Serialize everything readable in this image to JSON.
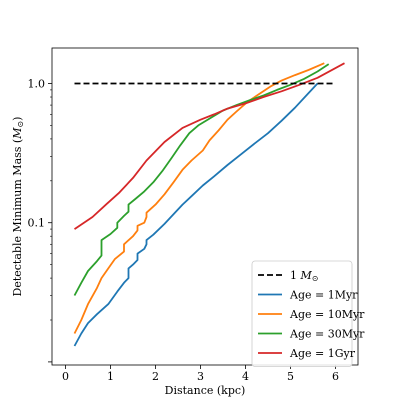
{
  "chart_data": {
    "type": "line",
    "title": "",
    "xlabel": "Distance (kpc)",
    "ylabel": "Detectable Minimum Mass (M_⊙)",
    "ylabel_main": "Detectable Minimum Mass (",
    "ylabel_unit": "M",
    "ylabel_sub": "⊙",
    "ylabel_close": ")",
    "xlim": [
      -0.3,
      6.5
    ],
    "ylim": [
      0.0095,
      1.8
    ],
    "yscale": "log",
    "grid": false,
    "legend_position": "lower-right",
    "x_ticks": [
      0,
      1,
      2,
      3,
      4,
      5,
      6
    ],
    "x_tick_labels": [
      "0",
      "1",
      "2",
      "3",
      "4",
      "5",
      "6"
    ],
    "y_ticks": [
      0.1,
      1.0
    ],
    "y_tick_labels": [
      "0.1",
      "1.0"
    ],
    "reference_line": {
      "name_main": "1 ",
      "name_unit": "M",
      "name_sub": "⊙",
      "y": 1.0,
      "x": [
        0.2,
        6.0
      ],
      "color": "#000000",
      "dash": "6,3"
    },
    "series": [
      {
        "name": "Age = 1Myr",
        "color": "#1f77b4",
        "x": [
          0.2,
          0.35,
          0.5,
          0.7,
          0.95,
          1.15,
          1.3,
          1.4,
          1.4,
          1.5,
          1.6,
          1.6,
          1.75,
          1.8,
          1.8,
          1.95,
          2.2,
          2.4,
          2.6,
          2.8,
          3.05,
          3.3,
          3.6,
          3.9,
          4.2,
          4.5,
          4.8,
          5.1,
          5.35,
          5.6
        ],
        "y": [
          0.013,
          0.016,
          0.019,
          0.022,
          0.026,
          0.032,
          0.037,
          0.04,
          0.047,
          0.05,
          0.054,
          0.06,
          0.065,
          0.07,
          0.075,
          0.082,
          0.098,
          0.115,
          0.135,
          0.155,
          0.185,
          0.215,
          0.26,
          0.31,
          0.37,
          0.44,
          0.54,
          0.67,
          0.82,
          1.0
        ]
      },
      {
        "name": "Age = 10Myr",
        "color": "#ff7f0e",
        "x": [
          0.2,
          0.35,
          0.5,
          0.7,
          0.8,
          0.95,
          1.1,
          1.3,
          1.3,
          1.5,
          1.6,
          1.6,
          1.75,
          1.8,
          1.8,
          2.0,
          2.2,
          2.4,
          2.6,
          2.8,
          3.05,
          3.2,
          3.4,
          3.6,
          3.8,
          4.05,
          4.3,
          4.55,
          4.8,
          5.1,
          5.4,
          5.75
        ],
        "y": [
          0.016,
          0.02,
          0.026,
          0.034,
          0.04,
          0.047,
          0.055,
          0.062,
          0.07,
          0.08,
          0.088,
          0.095,
          0.1,
          0.11,
          0.118,
          0.135,
          0.16,
          0.195,
          0.24,
          0.28,
          0.33,
          0.39,
          0.46,
          0.55,
          0.63,
          0.74,
          0.84,
          0.95,
          1.05,
          1.15,
          1.25,
          1.4
        ]
      },
      {
        "name": "Age = 30Myr",
        "color": "#2ca02c",
        "x": [
          0.2,
          0.35,
          0.5,
          0.7,
          0.8,
          0.8,
          1.0,
          1.15,
          1.15,
          1.3,
          1.4,
          1.4,
          1.55,
          1.75,
          1.95,
          2.15,
          2.35,
          2.55,
          2.75,
          2.95,
          3.2,
          3.5,
          3.8,
          4.1,
          4.4,
          4.7,
          5.0,
          5.3,
          5.6,
          5.85
        ],
        "y": [
          0.03,
          0.037,
          0.045,
          0.053,
          0.058,
          0.075,
          0.083,
          0.092,
          0.1,
          0.112,
          0.12,
          0.135,
          0.148,
          0.168,
          0.195,
          0.235,
          0.29,
          0.36,
          0.44,
          0.5,
          0.56,
          0.64,
          0.7,
          0.76,
          0.82,
          0.9,
          0.98,
          1.08,
          1.22,
          1.38
        ]
      },
      {
        "name": "Age = 1Gyr",
        "color": "#d62728",
        "x": [
          0.2,
          0.6,
          0.9,
          1.2,
          1.5,
          1.8,
          2.2,
          2.6,
          3.0,
          3.3,
          3.6,
          4.0,
          4.4,
          4.8,
          5.2,
          5.6,
          6.2
        ],
        "y": [
          0.09,
          0.11,
          0.135,
          0.165,
          0.21,
          0.28,
          0.38,
          0.48,
          0.55,
          0.6,
          0.66,
          0.72,
          0.8,
          0.88,
          0.98,
          1.1,
          1.4
        ]
      }
    ]
  }
}
